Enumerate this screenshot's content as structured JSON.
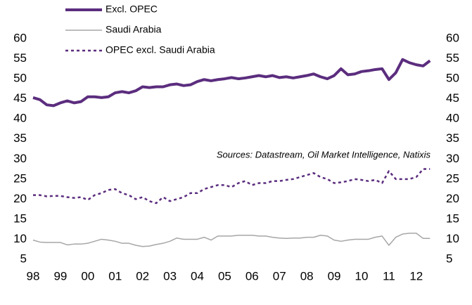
{
  "chart_data": {
    "type": "line",
    "annotation": "Sources: Datastream, Oil Market Intelligence, Natixis",
    "x": [
      1998,
      1998.25,
      1998.5,
      1998.75,
      1999,
      1999.25,
      1999.5,
      1999.75,
      2000,
      2000.25,
      2000.5,
      2000.75,
      2001,
      2001.25,
      2001.5,
      2001.75,
      2002,
      2002.25,
      2002.5,
      2002.75,
      2003,
      2003.25,
      2003.5,
      2003.75,
      2004,
      2004.25,
      2004.5,
      2004.75,
      2005,
      2005.25,
      2005.5,
      2005.75,
      2006,
      2006.25,
      2006.5,
      2006.75,
      2007,
      2007.25,
      2007.5,
      2007.75,
      2008,
      2008.25,
      2008.5,
      2008.75,
      2009,
      2009.25,
      2009.5,
      2009.75,
      2010,
      2010.25,
      2010.5,
      2010.75,
      2011,
      2011.25,
      2011.5,
      2011.75,
      2012,
      2012.25,
      2012.5
    ],
    "series": [
      {
        "name": "Excl. OPEC",
        "color": "#5b2d7e",
        "style": "solid-thick",
        "values": [
          45.3,
          44.8,
          43.5,
          43.3,
          44,
          44.5,
          44,
          44.3,
          45.5,
          45.5,
          45.3,
          45.5,
          46.5,
          46.8,
          46.5,
          47,
          48,
          47.8,
          48,
          48,
          48.5,
          48.7,
          48.3,
          48.5,
          49.3,
          49.8,
          49.5,
          49.8,
          50,
          50.3,
          50,
          50.2,
          50.5,
          50.8,
          50.5,
          50.8,
          50.3,
          50.5,
          50.2,
          50.5,
          50.8,
          51.2,
          50.5,
          50,
          50.8,
          52.5,
          51,
          51.2,
          51.8,
          52,
          52.3,
          52.5,
          49.8,
          51.5,
          54.8,
          54,
          53.5,
          53.2,
          54.5
        ]
      },
      {
        "name": "Saudi Arabia",
        "color": "#a6a6a6",
        "style": "solid-thin",
        "values": [
          9.8,
          9.3,
          9.2,
          9.2,
          9.2,
          8.6,
          8.8,
          8.8,
          9,
          9.5,
          10,
          9.8,
          9.5,
          9,
          9,
          8.5,
          8.2,
          8.3,
          8.7,
          9,
          9.5,
          10.3,
          10,
          10,
          10,
          10.5,
          9.8,
          10.8,
          10.8,
          10.8,
          11,
          11,
          11,
          10.8,
          10.8,
          10.5,
          10.3,
          10.2,
          10.3,
          10.3,
          10.5,
          10.5,
          11,
          10.8,
          9.8,
          9.5,
          9.8,
          10,
          10,
          10,
          10.5,
          10.8,
          8.5,
          10.5,
          11.3,
          11.5,
          11.5,
          10.2,
          10.2
        ]
      },
      {
        "name": "OPEC excl. Saudi Arabia",
        "color": "#5b2d7e",
        "style": "dashed",
        "values": [
          21,
          21,
          20.7,
          20.8,
          20.8,
          20.5,
          20.3,
          20.5,
          19.8,
          21,
          21.5,
          22.3,
          22.5,
          21.5,
          21,
          20,
          20.5,
          19.5,
          19,
          20.5,
          19.5,
          20,
          20.5,
          21.5,
          21.5,
          22.5,
          23,
          23.5,
          23.5,
          23,
          24,
          24.5,
          23.5,
          24,
          24,
          24.5,
          24.5,
          24.8,
          25,
          25.5,
          26,
          26.5,
          25.5,
          25,
          24,
          24.2,
          24.5,
          25,
          24.8,
          24.5,
          24.8,
          24,
          27,
          25,
          25,
          25,
          25.5,
          27.5,
          27.5
        ]
      }
    ],
    "xlim": [
      1998,
      2012.93
    ],
    "xticks": [
      {
        "value": 1998,
        "label": "98"
      },
      {
        "value": 1999,
        "label": "99"
      },
      {
        "value": 2000,
        "label": "00"
      },
      {
        "value": 2001,
        "label": "01"
      },
      {
        "value": 2002,
        "label": "02"
      },
      {
        "value": 2003,
        "label": "03"
      },
      {
        "value": 2004,
        "label": "04"
      },
      {
        "value": 2005,
        "label": "05"
      },
      {
        "value": 2006,
        "label": "06"
      },
      {
        "value": 2007,
        "label": "07"
      },
      {
        "value": 2008,
        "label": "08"
      },
      {
        "value": 2009,
        "label": "09"
      },
      {
        "value": 2010,
        "label": "10"
      },
      {
        "value": 2011,
        "label": "11"
      },
      {
        "value": 2012,
        "label": "12"
      }
    ],
    "ylim": [
      5,
      60
    ],
    "yticks": [
      5,
      10,
      15,
      20,
      25,
      30,
      35,
      40,
      45,
      50,
      55,
      60
    ],
    "y2lim": [
      5,
      60
    ],
    "y2ticks": [
      5,
      10,
      15,
      20,
      25,
      30,
      35,
      40,
      45,
      50,
      55,
      60
    ],
    "legend": "top-left",
    "grid": false
  }
}
